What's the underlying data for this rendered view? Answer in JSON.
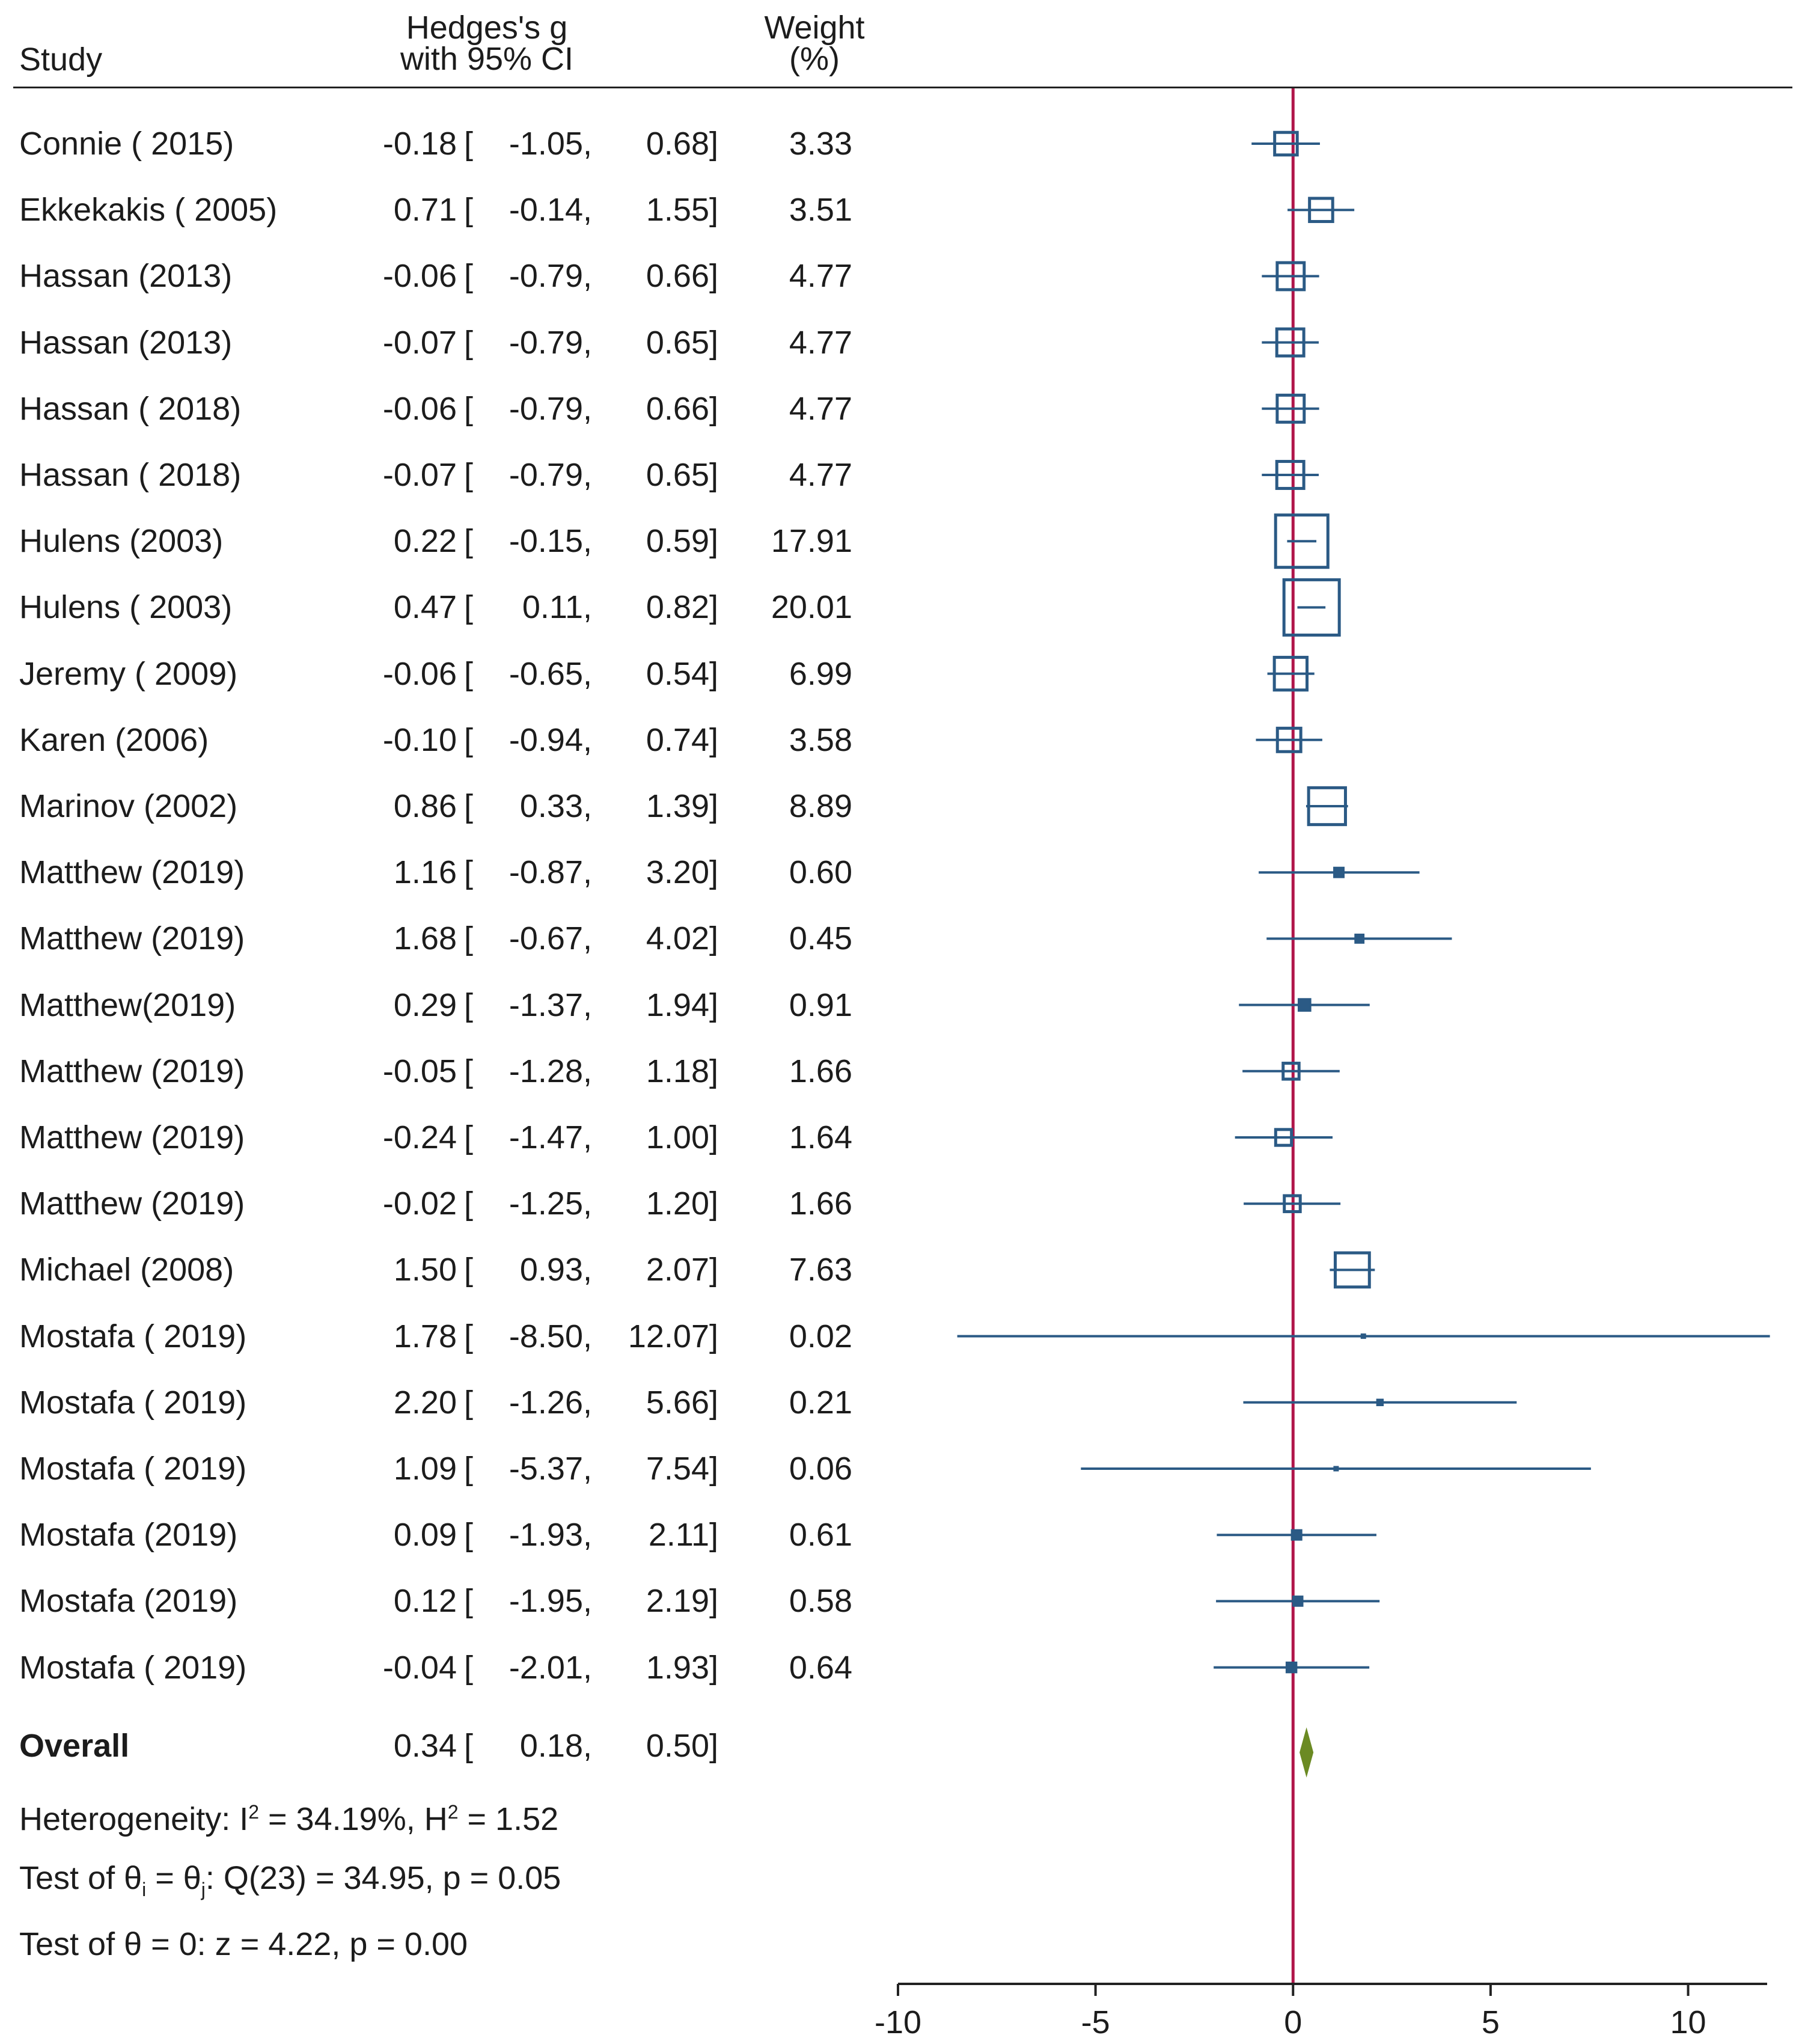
{
  "header": {
    "study": "Study",
    "es_line1": "Hedges's g",
    "es_line2": "with 95% CI",
    "weight_line1": "Weight",
    "weight_line2": "(%)"
  },
  "footer": {
    "overall_label": "Overall",
    "heterogeneity_prefix": "Heterogeneity: I",
    "heterogeneity_i2_sup": "2",
    "heterogeneity_i2_value": " = 34.19%, H",
    "heterogeneity_h2_sup": "2",
    "heterogeneity_h2_value": " = 1.52",
    "test_theta_prefix": "Test of θ",
    "test_theta_sub_i": "i",
    "test_theta_mid": " = θ",
    "test_theta_sub_j": "j",
    "test_theta_rest": ": Q(23) = 34.95, p = 0.05",
    "test_zero": "Test of θ = 0: z = 4.22, p = 0.00"
  },
  "colors": {
    "marker": "#2b5a85",
    "reference_line": "#b0164a",
    "diamond": "#6b8a23",
    "text": "#1c1c1c"
  },
  "chart_data": {
    "type": "forest",
    "xlabel": "",
    "xlim": [
      -10,
      12
    ],
    "xticks": [
      "-10",
      "-5",
      "0",
      "5",
      "10"
    ],
    "reference_line": 0,
    "studies": [
      {
        "study": "Connie ( 2015)",
        "es": "-0.18",
        "lo": "-1.05,",
        "hi": "0.68]",
        "w": "3.33"
      },
      {
        "study": "Ekkekakis ( 2005)",
        "es": "0.71",
        "lo": "-0.14,",
        "hi": "1.55]",
        "w": "3.51"
      },
      {
        "study": "Hassan (2013)",
        "es": "-0.06",
        "lo": "-0.79,",
        "hi": "0.66]",
        "w": "4.77"
      },
      {
        "study": "Hassan (2013)",
        "es": "-0.07",
        "lo": "-0.79,",
        "hi": "0.65]",
        "w": "4.77"
      },
      {
        "study": "Hassan ( 2018)",
        "es": "-0.06",
        "lo": "-0.79,",
        "hi": "0.66]",
        "w": "4.77"
      },
      {
        "study": "Hassan ( 2018)",
        "es": "-0.07",
        "lo": "-0.79,",
        "hi": "0.65]",
        "w": "4.77"
      },
      {
        "study": "Hulens (2003)",
        "es": "0.22",
        "lo": "-0.15,",
        "hi": "0.59]",
        "w": "17.91"
      },
      {
        "study": "Hulens ( 2003)",
        "es": "0.47",
        "lo": "0.11,",
        "hi": "0.82]",
        "w": "20.01"
      },
      {
        "study": "Jeremy ( 2009)",
        "es": "-0.06",
        "lo": "-0.65,",
        "hi": "0.54]",
        "w": "6.99"
      },
      {
        "study": "Karen (2006)",
        "es": "-0.10",
        "lo": "-0.94,",
        "hi": "0.74]",
        "w": "3.58"
      },
      {
        "study": "Marinov (2002)",
        "es": "0.86",
        "lo": "0.33,",
        "hi": "1.39]",
        "w": "8.89"
      },
      {
        "study": "Matthew (2019)",
        "es": "1.16",
        "lo": "-0.87,",
        "hi": "3.20]",
        "w": "0.60"
      },
      {
        "study": "Matthew (2019)",
        "es": "1.68",
        "lo": "-0.67,",
        "hi": "4.02]",
        "w": "0.45"
      },
      {
        "study": "Matthew(2019)",
        "es": "0.29",
        "lo": "-1.37,",
        "hi": "1.94]",
        "w": "0.91"
      },
      {
        "study": "Matthew (2019)",
        "es": "-0.05",
        "lo": "-1.28,",
        "hi": "1.18]",
        "w": "1.66"
      },
      {
        "study": "Matthew (2019)",
        "es": "-0.24",
        "lo": "-1.47,",
        "hi": "1.00]",
        "w": "1.64"
      },
      {
        "study": "Matthew (2019)",
        "es": "-0.02",
        "lo": "-1.25,",
        "hi": "1.20]",
        "w": "1.66"
      },
      {
        "study": "Michael (2008)",
        "es": "1.50",
        "lo": "0.93,",
        "hi": "2.07]",
        "w": "7.63"
      },
      {
        "study": "Mostafa ( 2019)",
        "es": "1.78",
        "lo": "-8.50,",
        "hi": "12.07]",
        "w": "0.02"
      },
      {
        "study": "Mostafa ( 2019)",
        "es": "2.20",
        "lo": "-1.26,",
        "hi": "5.66]",
        "w": "0.21"
      },
      {
        "study": "Mostafa ( 2019)",
        "es": "1.09",
        "lo": "-5.37,",
        "hi": "7.54]",
        "w": "0.06"
      },
      {
        "study": "Mostafa (2019)",
        "es": "0.09",
        "lo": "-1.93,",
        "hi": "2.11]",
        "w": "0.61"
      },
      {
        "study": "Mostafa (2019)",
        "es": "0.12",
        "lo": "-1.95,",
        "hi": "2.19]",
        "w": "0.58"
      },
      {
        "study": "Mostafa ( 2019)",
        "es": "-0.04",
        "lo": "-2.01,",
        "hi": "1.93]",
        "w": "0.64"
      }
    ],
    "overall": {
      "es": "0.34",
      "lo": "0.18,",
      "hi": "0.50]"
    }
  }
}
